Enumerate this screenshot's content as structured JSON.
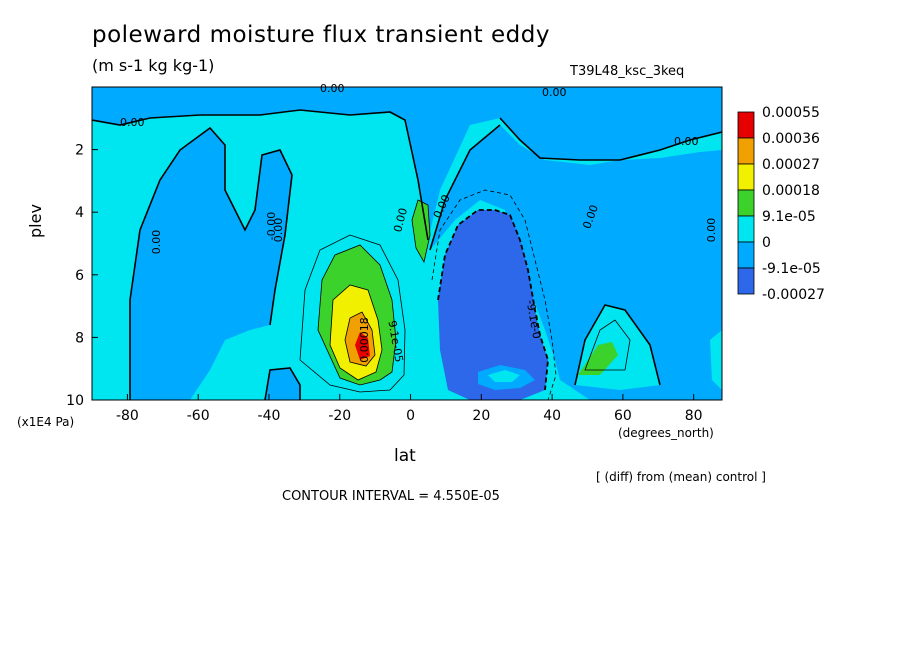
{
  "title": "poleward moisture flux transient eddy",
  "units": "(m s-1 kg kg-1)",
  "run_id": "T39L48_ksc_3keq",
  "xlabel": "lat",
  "xunits": "(degrees_north)",
  "ylabel": "plev",
  "yunits": "(x1E4 Pa)",
  "diff_note": "[ (diff) from (mean) control ]",
  "contour_interval": "CONTOUR INTERVAL = 4.550E-05",
  "colors": {
    "c_neg2": "#2d67ea",
    "c_neg1": "#00aaff",
    "c_zero": "#00e6f0",
    "c_pos1": "#3cd22c",
    "c_pos2": "#f0f000",
    "c_pos3": "#f0a000",
    "c_pos4": "#e60000"
  },
  "chart_data": {
    "type": "heatmap",
    "title": "poleward moisture flux transient eddy",
    "xlabel": "lat",
    "ylabel": "plev",
    "xlim": [
      -90,
      88
    ],
    "ylim": [
      10,
      0
    ],
    "x_ticks": [
      "-80",
      "-60",
      "-40",
      "-20",
      "0",
      "20",
      "40",
      "60",
      "80"
    ],
    "y_ticks": [
      "2",
      "4",
      "6",
      "8",
      "10"
    ],
    "colorbar_levels": [
      "0.00055",
      "0.00036",
      "0.00027",
      "0.00018",
      "9.1e-05",
      "0",
      "-9.1e-05",
      "-0.00027"
    ],
    "contour_labels": [
      "0.00",
      "0.00",
      "0.00",
      "0.00",
      "-0.00",
      "0.00",
      "0.00",
      "0.00",
      "0.00",
      "0.00",
      "0.00",
      "-9.1e-0",
      "9.1e-05",
      "0.00018"
    ],
    "regions": [
      {
        "name": "southern tropical positive maximum",
        "lat_center": -13,
        "plev_center": 8.4,
        "value": 0.00055
      },
      {
        "name": "southern tropical positive band",
        "lat_center": -16,
        "plev_center": 7.2,
        "value": 0.00018
      },
      {
        "name": "northern subtropical negative minimum",
        "lat_center": 25,
        "plev_center": 6.5,
        "value": -0.00027
      },
      {
        "name": "northern midlatitude positive",
        "lat_center": 55,
        "plev_center": 8.8,
        "value": 9.1e-05
      }
    ]
  }
}
